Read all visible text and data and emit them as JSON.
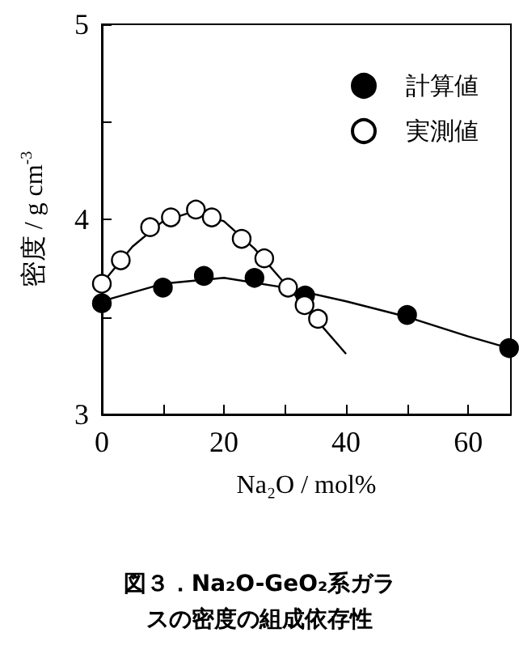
{
  "chart_data": {
    "type": "scatter",
    "title": "図３．Na₂O-GeO₂系ガラスの密度の組成依存性",
    "xlabel": "Na₂O / mol%",
    "ylabel": "密度 / g cm$^{-3}$",
    "xlim": [
      0,
      67
    ],
    "ylim": [
      3,
      5
    ],
    "xticks": [
      0,
      {
        "value": 10,
        "label": null
      },
      20,
      {
        "value": 30,
        "label": null
      },
      40,
      {
        "value": 50,
        "label": null
      },
      60
    ],
    "yticks": [
      3,
      {
        "value": 3.5,
        "label": null
      },
      4,
      {
        "value": 4.5,
        "label": null
      },
      5
    ],
    "marker": "circle",
    "legend": "top right",
    "grid": false,
    "series": [
      {
        "name": "計算値",
        "color": "#000000",
        "x": [
          0,
          10,
          16.7,
          25,
          33.3,
          50,
          66.7
        ],
        "values": [
          3.57,
          3.65,
          3.71,
          3.7,
          3.61,
          3.51,
          3.34
        ]
      },
      {
        "name": "実測値",
        "color": "#ffffff",
        "x": [
          0,
          3.1,
          7.9,
          11.3,
          15.4,
          18,
          22.9,
          26.6,
          30.5,
          33.2,
          35.4
        ],
        "values": [
          3.67,
          3.79,
          3.96,
          4.01,
          4.05,
          4.01,
          3.9,
          3.8,
          3.65,
          3.56,
          3.49
        ]
      },
      {
        "type": "line",
        "marker": "none",
        "color": "#000000",
        "x": [
          0,
          10,
          20,
          30,
          40,
          50,
          60,
          66.7
        ],
        "values": [
          3.58,
          3.67,
          3.7,
          3.65,
          3.58,
          3.5,
          3.4,
          3.34
        ]
      },
      {
        "type": "line",
        "marker": "none",
        "color": "#000000",
        "x": [
          0,
          5,
          10,
          15,
          20,
          25,
          30,
          35,
          40
        ],
        "values": [
          3.67,
          3.86,
          3.99,
          4.04,
          3.99,
          3.85,
          3.67,
          3.49,
          3.31
        ]
      }
    ]
  }
}
